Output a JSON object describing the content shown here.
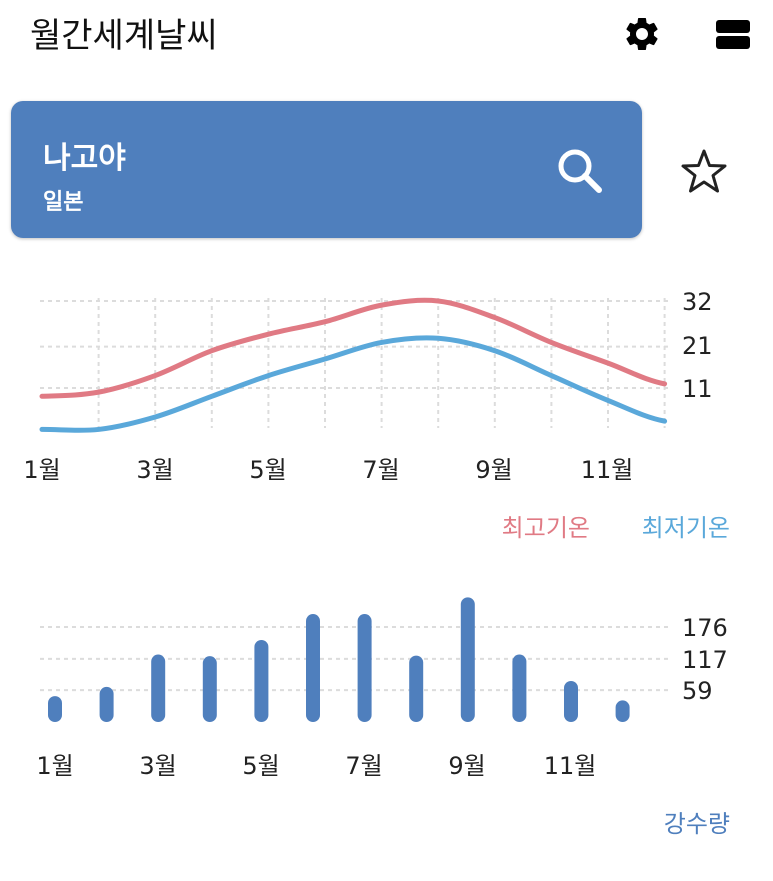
{
  "header": {
    "title": "월간세계날씨",
    "settings_icon": "gear-icon",
    "menu_icon": "list-view-icon"
  },
  "location": {
    "city": "나고야",
    "country": "일본",
    "search_icon": "search-icon",
    "favorite_icon": "star-outline-icon"
  },
  "colors": {
    "card": "#4f7fbd",
    "high": "#e07a84",
    "low": "#5aa8da",
    "bar": "#4f7fbd"
  },
  "chart_data": [
    {
      "type": "line",
      "x": [
        1,
        2,
        3,
        4,
        5,
        6,
        7,
        8,
        9,
        10,
        11,
        12
      ],
      "xtick_labels": [
        "1월",
        "3월",
        "5월",
        "7월",
        "9월",
        "11월"
      ],
      "ytick_labels": [
        "32",
        "21",
        "11"
      ],
      "ylim": [
        1,
        32
      ],
      "grid": true,
      "series": [
        {
          "name": "최고기온",
          "color": "#e07a84",
          "values": [
            9,
            10,
            14,
            20,
            24,
            27,
            31,
            32,
            28,
            22,
            17,
            12
          ]
        },
        {
          "name": "최저기온",
          "color": "#5aa8da",
          "values": [
            1,
            1,
            4,
            9,
            14,
            18,
            22,
            23,
            20,
            14,
            8,
            3
          ]
        }
      ],
      "legend": [
        "최고기온",
        "최저기온"
      ],
      "legend_placement": "bottom-right"
    },
    {
      "type": "bar",
      "categories": [
        1,
        2,
        3,
        4,
        5,
        6,
        7,
        8,
        9,
        10,
        11,
        12
      ],
      "xtick_labels": [
        "1월",
        "3월",
        "5월",
        "7월",
        "9월",
        "11월"
      ],
      "ytick_labels": [
        "176",
        "117",
        "59"
      ],
      "values": [
        48,
        65,
        125,
        122,
        152,
        200,
        200,
        123,
        231,
        125,
        76,
        40
      ],
      "ylim": [
        0,
        235
      ],
      "grid": true,
      "color": "#4f7fbd",
      "legend": [
        "강수량"
      ],
      "legend_placement": "bottom-right"
    }
  ]
}
